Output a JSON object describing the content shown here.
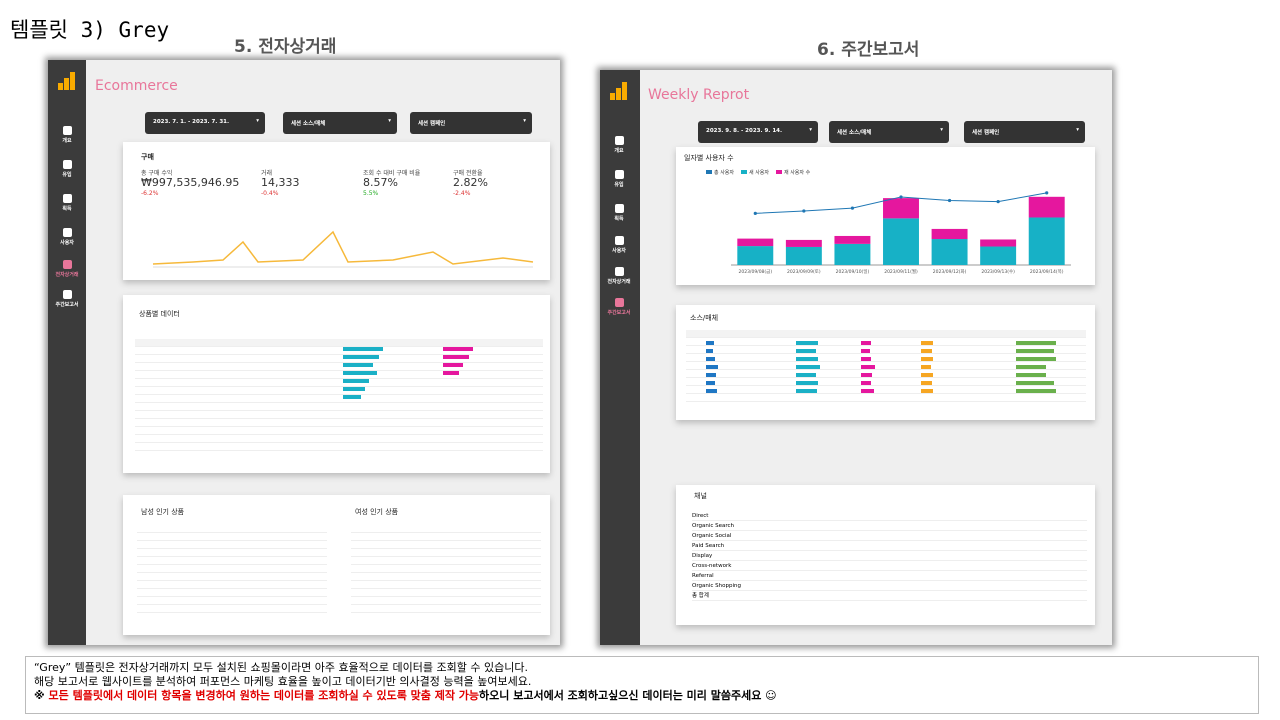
{
  "header": {
    "title": "템플릿 3) Grey"
  },
  "ecommerce": {
    "heading": "5. 전자상거래",
    "report_title": "Ecommerce",
    "date_range": "2023. 7. 1. - 2023. 7. 31.",
    "filters": [
      "세션 소스/매체",
      "세션 캠페인"
    ],
    "nav": [
      "개요",
      "유입",
      "획득",
      "사용자",
      "전자상거래",
      "주간보고서"
    ],
    "kpi_title": "구매",
    "kpis": [
      {
        "label": "총 구매 수익",
        "value": "₩997,535,946.95",
        "change": "-6.2%"
      },
      {
        "label": "거래",
        "value": "14,333",
        "change": "-0.4%"
      },
      {
        "label": "조회 수 대비 구매 비율",
        "value": "8.57%",
        "change": "5.5%"
      },
      {
        "label": "구매 전환율",
        "value": "2.82%",
        "change": "-2.4%"
      }
    ],
    "product_title": "상품별 데이터",
    "male_title": "남성 인기 상품",
    "female_title": "여성 인기 상품"
  },
  "weekly": {
    "heading": "6. 주간보고서",
    "report_title": "Weekly Reprot",
    "date_range": "2023. 9. 8. - 2023. 9. 14.",
    "filters": [
      "세션 소스/매체",
      "세션 캠페인"
    ],
    "nav": [
      "개요",
      "유입",
      "획득",
      "사용자",
      "전자상거래",
      "주간보고서"
    ],
    "source_title": "소스/매체",
    "channel_title": "채널",
    "channels": [
      "Direct",
      "Organic Search",
      "Organic Social",
      "Paid Search",
      "Display",
      "Cross-network",
      "Referral",
      "Organic Shopping",
      "총 합계"
    ]
  },
  "chart_data": {
    "type": "bar",
    "title": "일자별 사용자 수",
    "categories": [
      "2023/09/08(금)",
      "2023/09/09(토)",
      "2023/09/10(일)",
      "2023/09/11(월)",
      "2023/09/12(화)",
      "2023/09/13(수)",
      "2023/09/14(목)"
    ],
    "ylim": [
      0,
      20000
    ],
    "y2lim": [
      0,
      15000
    ],
    "series": [
      {
        "name": "총 사용자",
        "color": "#1f77b4",
        "type": "line",
        "axis": "y2",
        "values": [
          8800,
          9200,
          9700,
          11600,
          11000,
          10800,
          12300
        ]
      },
      {
        "name": "새 사용자",
        "color": "#17b1c6",
        "values": [
          4300,
          4100,
          4800,
          10600,
          5900,
          4200,
          10800
        ]
      },
      {
        "name": "재 사용자 수",
        "color": "#e5179e",
        "values": [
          1700,
          1600,
          1800,
          4600,
          2300,
          1600,
          4700
        ]
      }
    ]
  },
  "footer": {
    "lines": [
      "“Grey” 템플릿은 전자상거래까지 모두 설치된 쇼핑몰이라면 아주 효율적으로 데이터를 조회할 수 있습니다.",
      "해당 보고서로 웹사이트를 분석하여 퍼포먼스 마케팅 효율을 높이고 데이터기반 의사결정 능력을 높여보세요."
    ],
    "note_prefix": "※ ",
    "note_highlight": "모든 템플릿에서 데이터 항목을 변경하여 원하는 데이터를 조회하실 수 있도록 맞춤 제작 가능",
    "note_suffix": "하오니 보고서에서 조회하고싶으신 데이터는 미리 말씀주세요 ☺"
  }
}
